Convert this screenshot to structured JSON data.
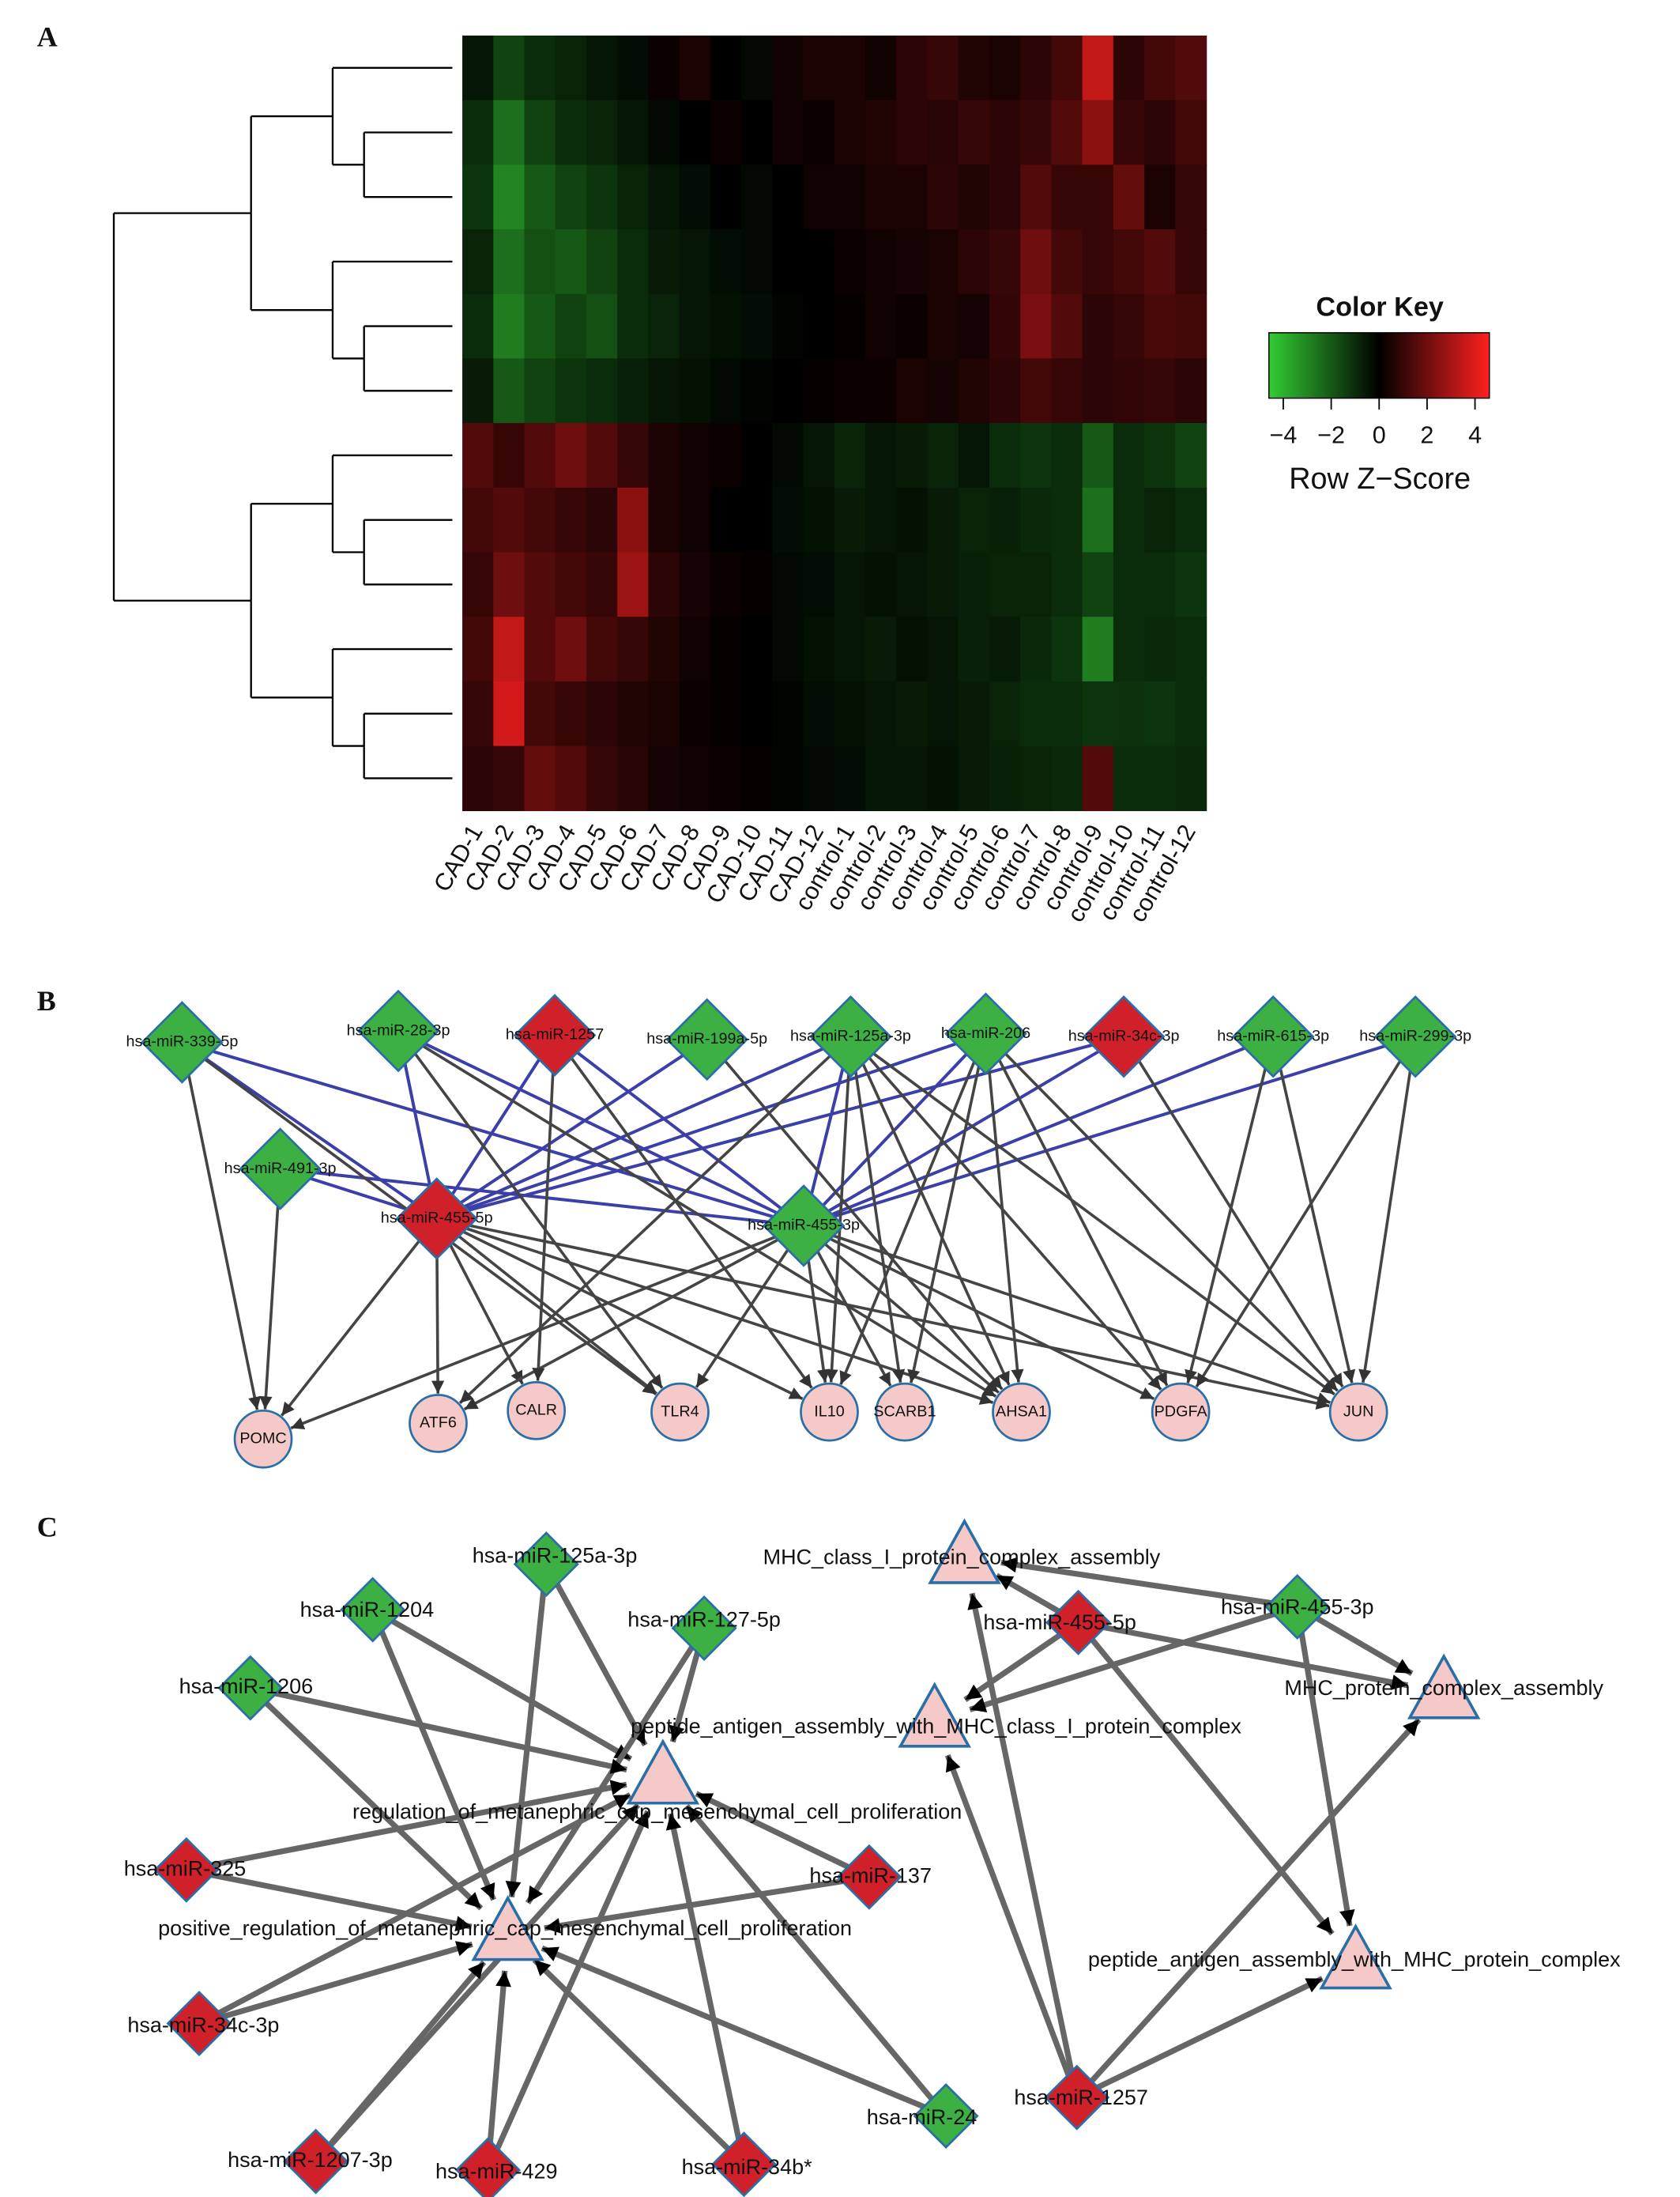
{
  "chart_data": {
    "type": "heatmap",
    "panel_label": "A",
    "categories": [
      "CAD-1",
      "CAD-2",
      "CAD-3",
      "CAD-4",
      "CAD-5",
      "CAD-6",
      "CAD-7",
      "CAD-8",
      "CAD-9",
      "CAD-10",
      "CAD-11",
      "CAD-12",
      "control-1",
      "control-2",
      "control-3",
      "control-4",
      "control-5",
      "control-6",
      "control-7",
      "control-8",
      "control-9",
      "control-10",
      "control-11",
      "control-12"
    ],
    "values": [
      [
        -0.5,
        -1.5,
        -1,
        -0.8,
        -0.5,
        -0.3,
        0.2,
        0.5,
        0,
        -0.2,
        0.3,
        0.5,
        0.5,
        0.3,
        0.8,
        1,
        0.6,
        0.5,
        0.8,
        1.2,
        3.5,
        0.8,
        1.2,
        1.5
      ],
      [
        -1,
        -2.5,
        -1.5,
        -1,
        -0.8,
        -0.5,
        -0.2,
        0,
        0.2,
        0,
        0.3,
        0.2,
        0.5,
        0.6,
        0.8,
        0.7,
        1,
        0.8,
        1,
        1.5,
        2.5,
        1,
        0.8,
        1.2
      ],
      [
        -1.2,
        -3,
        -2,
        -1.5,
        -1.2,
        -0.8,
        -0.5,
        -0.3,
        0,
        -0.2,
        0,
        0.3,
        0.3,
        0.5,
        0.5,
        0.8,
        0.6,
        0.8,
        1.5,
        1,
        1,
        1.8,
        0.5,
        1
      ],
      [
        -0.8,
        -2.5,
        -1.8,
        -2,
        -1.5,
        -1,
        -0.6,
        -0.5,
        -0.3,
        -0.2,
        0,
        0,
        0.2,
        0.3,
        0.4,
        0.5,
        0.8,
        1,
        2,
        1.2,
        1,
        1.2,
        1.5,
        1
      ],
      [
        -1,
        -2.8,
        -2,
        -1.5,
        -1.8,
        -1,
        -0.8,
        -0.5,
        -0.4,
        -0.3,
        -0.1,
        0,
        0.1,
        0.3,
        0.2,
        0.5,
        0.4,
        0.9,
        2.2,
        1.5,
        0.8,
        1,
        1.3,
        1.2
      ],
      [
        -0.6,
        -2,
        -1.5,
        -1.2,
        -1,
        -0.7,
        -0.5,
        -0.4,
        -0.2,
        -0.1,
        0,
        0.1,
        0.2,
        0.2,
        0.5,
        0.4,
        0.6,
        0.8,
        1.2,
        1,
        0.8,
        0.9,
        1,
        0.8
      ],
      [
        1.5,
        1,
        1.5,
        2,
        1.5,
        1,
        0.5,
        0.3,
        0.2,
        0,
        -0.2,
        -0.5,
        -0.8,
        -0.5,
        -0.6,
        -0.8,
        -0.5,
        -1,
        -1.2,
        -1,
        -2,
        -1,
        -1.2,
        -1.5
      ],
      [
        1.2,
        1.5,
        1.2,
        1,
        0.8,
        2.5,
        0.5,
        0.3,
        0,
        0,
        -0.3,
        -0.4,
        -0.6,
        -0.5,
        -0.4,
        -0.6,
        -0.8,
        -0.7,
        -0.9,
        -1,
        -2.5,
        -1,
        -0.8,
        -1
      ],
      [
        1,
        2,
        1.5,
        1.2,
        1,
        2.8,
        0.8,
        0.4,
        0.2,
        0.1,
        -0.2,
        -0.3,
        -0.5,
        -0.4,
        -0.5,
        -0.6,
        -0.7,
        -0.8,
        -0.8,
        -1,
        -1.5,
        -1,
        -1,
        -1.2
      ],
      [
        1.2,
        3.5,
        1.5,
        2,
        1.2,
        1,
        0.6,
        0.3,
        0.1,
        0,
        -0.2,
        -0.4,
        -0.5,
        -0.6,
        -0.4,
        -0.5,
        -0.7,
        -0.6,
        -0.9,
        -1.2,
        -2.8,
        -1,
        -0.9,
        -1
      ],
      [
        1,
        3.8,
        1.2,
        1,
        0.8,
        0.6,
        0.5,
        0.2,
        0.1,
        0,
        -0.1,
        -0.3,
        -0.4,
        -0.5,
        -0.6,
        -0.5,
        -0.6,
        -0.8,
        -1,
        -1,
        -1.2,
        -1.1,
        -1.2,
        -1
      ],
      [
        0.8,
        1,
        1.8,
        1.5,
        1,
        0.7,
        0.4,
        0.3,
        0.2,
        0.1,
        -0.1,
        -0.2,
        -0.3,
        -0.5,
        -0.5,
        -0.4,
        -0.6,
        -0.7,
        -0.8,
        -0.9,
        1.5,
        -1,
        -1,
        -0.9
      ]
    ],
    "colorbar": {
      "title": "Color Key",
      "label": "Row Z−Score",
      "lim": [
        -4.6,
        4.6
      ],
      "colors": [
        "#33cc33",
        "#000000",
        "#ff2020"
      ],
      "ticks": [
        {
          "value": -4,
          "label": "−4"
        },
        {
          "value": -2,
          "label": "−2"
        },
        0,
        2,
        4
      ]
    }
  },
  "panel_b": {
    "label": "B",
    "nodes": [
      {
        "label": "hsa-miR-339-5p",
        "shape": "diamond",
        "color": "#3cb043"
      },
      {
        "label": "hsa-miR-28-3p",
        "shape": "diamond",
        "color": "#3cb043"
      },
      {
        "label": "hsa-miR-1257",
        "shape": "diamond",
        "color": "#d0212a"
      },
      {
        "label": "hsa-miR-199a-5p",
        "shape": "diamond",
        "color": "#3cb043"
      },
      {
        "label": "hsa-miR-125a-3p",
        "shape": "diamond",
        "color": "#3cb043"
      },
      {
        "label": "hsa-miR-206",
        "shape": "diamond",
        "color": "#3cb043"
      },
      {
        "label": "hsa-miR-34c-3p",
        "shape": "diamond",
        "color": "#d0212a"
      },
      {
        "label": "hsa-miR-615-3p",
        "shape": "diamond",
        "color": "#3cb043"
      },
      {
        "label": "hsa-miR-299-3p",
        "shape": "diamond",
        "color": "#3cb043"
      },
      {
        "label": "hsa-miR-491-3p",
        "shape": "diamond",
        "color": "#3cb043"
      },
      {
        "label": "hsa-miR-455-5p",
        "shape": "diamond",
        "color": "#d0212a"
      },
      {
        "label": "hsa-miR-455-3p",
        "shape": "diamond",
        "color": "#3cb043"
      },
      {
        "label": "POMC",
        "shape": "circle",
        "color": "#f6c9c9"
      },
      {
        "label": "ATF6",
        "shape": "circle",
        "color": "#f6c9c9"
      },
      {
        "label": "CALR",
        "shape": "circle",
        "color": "#f6c9c9"
      },
      {
        "label": "TLR4",
        "shape": "circle",
        "color": "#f6c9c9"
      },
      {
        "label": "IL10",
        "shape": "circle",
        "color": "#f6c9c9"
      },
      {
        "label": "SCARB1",
        "shape": "circle",
        "color": "#f6c9c9"
      },
      {
        "label": "AHSA1",
        "shape": "circle",
        "color": "#f6c9c9"
      },
      {
        "label": "PDGFA",
        "shape": "circle",
        "color": "#f6c9c9"
      },
      {
        "label": "JUN",
        "shape": "circle",
        "color": "#f6c9c9"
      }
    ]
  },
  "panel_c": {
    "label": "C",
    "nodes": [
      {
        "label": "hsa-miR-1204",
        "shape": "diamond",
        "color": "#3cb043"
      },
      {
        "label": "hsa-miR-125a-3p",
        "shape": "diamond",
        "color": "#3cb043"
      },
      {
        "label": "hsa-miR-127-5p",
        "shape": "diamond",
        "color": "#3cb043"
      },
      {
        "label": "hsa-miR-1206",
        "shape": "diamond",
        "color": "#3cb043"
      },
      {
        "label": "hsa-miR-325",
        "shape": "diamond",
        "color": "#d0212a"
      },
      {
        "label": "hsa-miR-137",
        "shape": "diamond",
        "color": "#d0212a"
      },
      {
        "label": "hsa-miR-34c-3p",
        "shape": "diamond",
        "color": "#d0212a"
      },
      {
        "label": "hsa-miR-1207-3p",
        "shape": "diamond",
        "color": "#d0212a"
      },
      {
        "label": "hsa-miR-429",
        "shape": "diamond",
        "color": "#d0212a"
      },
      {
        "label": "hsa-miR-34b*",
        "shape": "diamond",
        "color": "#d0212a"
      },
      {
        "label": "hsa-miR-24",
        "shape": "diamond",
        "color": "#3cb043"
      },
      {
        "label": "regulation_of_metanephric_cap_mesenchymal_cell_proliferation",
        "shape": "triangle",
        "color": "#f6c9c9"
      },
      {
        "label": "positive_regulation_of_metanephric_cap_mesenchymal_cell_proliferation",
        "shape": "triangle",
        "color": "#f6c9c9"
      },
      {
        "label": "MHC_class_I_protein_complex_assembly",
        "shape": "triangle",
        "color": "#f6c9c9"
      },
      {
        "label": "peptide_antigen_assembly_with_MHC_class_I_protein_complex",
        "shape": "triangle",
        "color": "#f6c9c9"
      },
      {
        "label": "MHC_protein_complex_assembly",
        "shape": "triangle",
        "color": "#f6c9c9"
      },
      {
        "label": "peptide_antigen_assembly_with_MHC_protein_complex",
        "shape": "triangle",
        "color": "#f6c9c9"
      },
      {
        "label": "hsa-miR-455-5p",
        "shape": "diamond",
        "color": "#d0212a"
      },
      {
        "label": "hsa-miR-455-3p",
        "shape": "diamond",
        "color": "#3cb043"
      },
      {
        "label": "hsa-miR-1257",
        "shape": "diamond",
        "color": "#d0212a"
      }
    ]
  }
}
